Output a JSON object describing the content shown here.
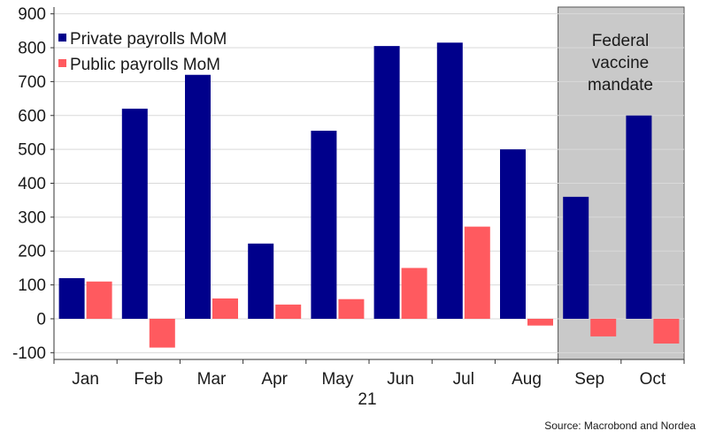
{
  "chart_data": {
    "type": "bar",
    "categories": [
      "Jan",
      "Feb",
      "Mar",
      "Apr",
      "May",
      "Jun",
      "Jul",
      "Aug",
      "Sep",
      "Oct"
    ],
    "x_group_label": "21",
    "series": [
      {
        "name": "Private payrolls MoM",
        "color": "#00008b",
        "values": [
          120,
          620,
          720,
          222,
          555,
          805,
          815,
          500,
          360,
          600
        ]
      },
      {
        "name": "Public payrolls MoM",
        "color": "#ff5a5f",
        "values": [
          110,
          -85,
          60,
          42,
          58,
          150,
          272,
          -20,
          -52,
          -73
        ]
      }
    ],
    "ylim": [
      -120,
      920
    ],
    "yticks": [
      -100,
      0,
      100,
      200,
      300,
      400,
      500,
      600,
      700,
      800,
      900
    ],
    "shaded_region": {
      "from_category": "Sep",
      "to_category": "Oct",
      "label_lines": [
        "Federal",
        "vaccine",
        "mandate"
      ],
      "fill": "#c9c9c9"
    },
    "legend_position": "top-left",
    "grid": "horizontal",
    "source": "Source: Macrobond and Nordea"
  }
}
